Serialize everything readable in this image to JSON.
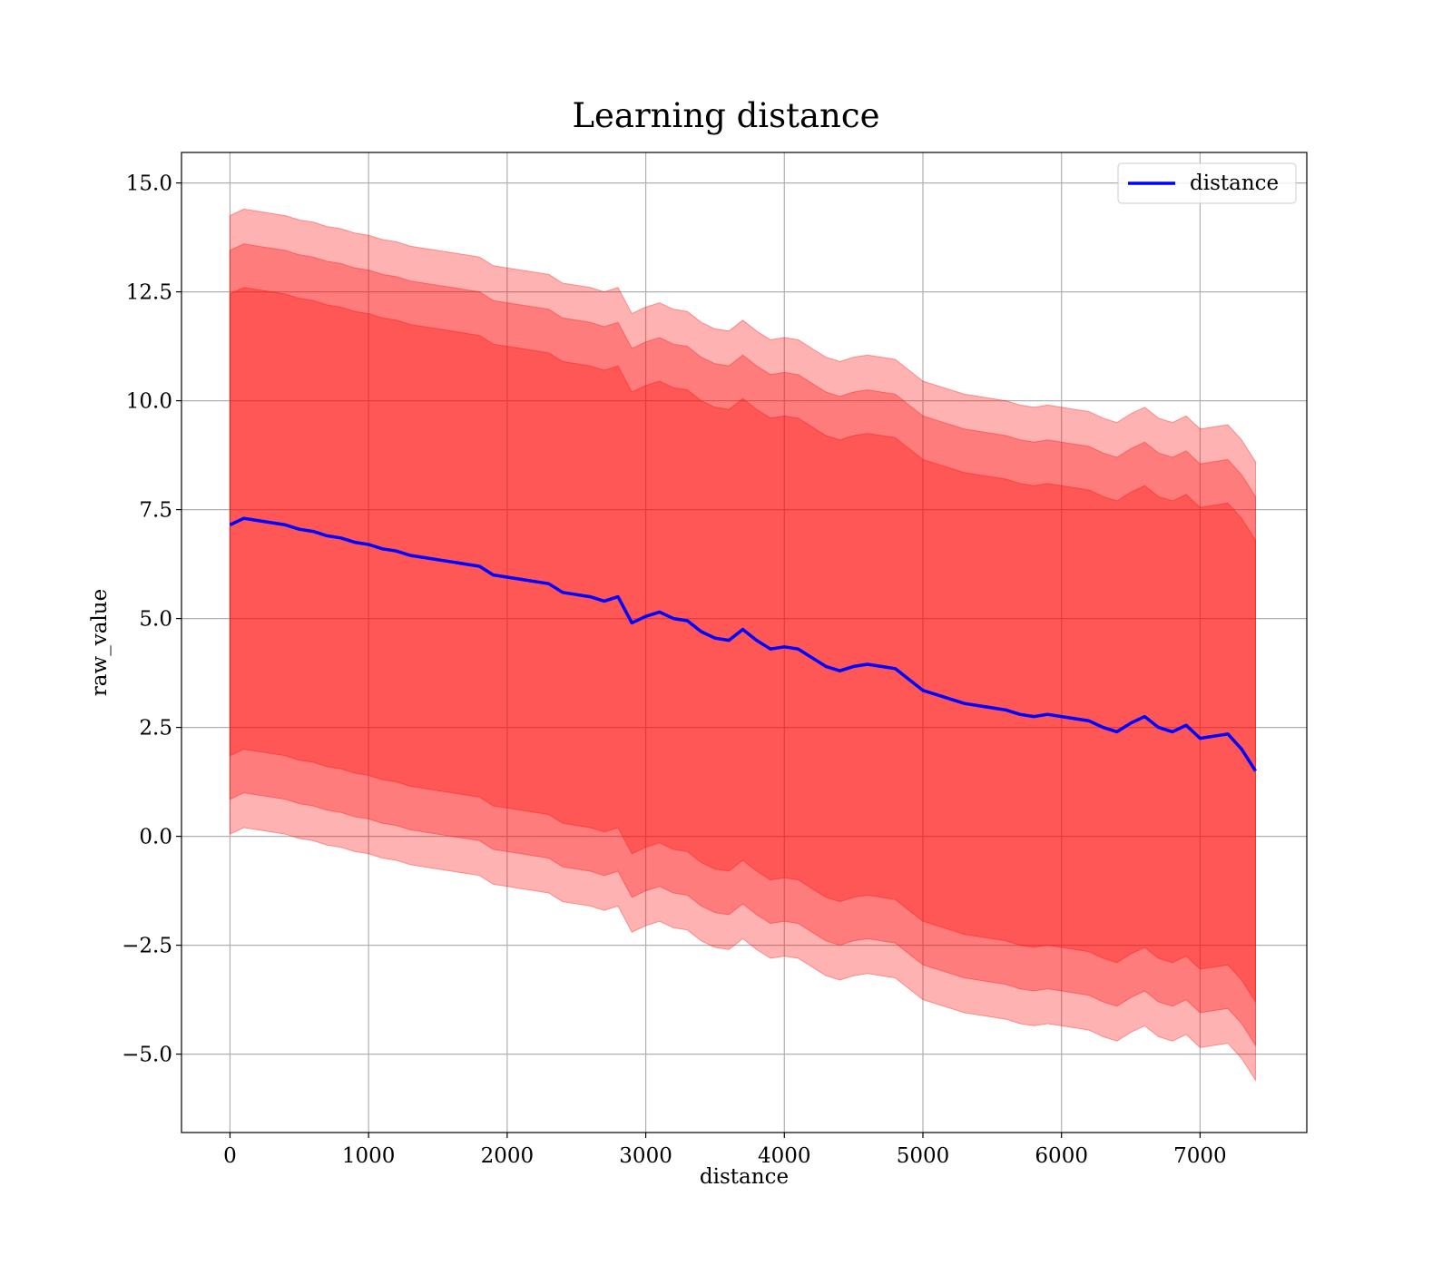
{
  "chart_data": {
    "type": "area",
    "title": "Learning distance",
    "xlabel": "distance",
    "ylabel": "raw_value",
    "xlim": [
      -350,
      7770
    ],
    "ylim": [
      -6.8,
      15.7
    ],
    "xticks": [
      0,
      1000,
      2000,
      3000,
      4000,
      5000,
      6000,
      7000
    ],
    "xtick_labels": [
      "0",
      "1000",
      "2000",
      "3000",
      "4000",
      "5000",
      "6000",
      "7000"
    ],
    "yticks": [
      -5.0,
      -2.5,
      0.0,
      2.5,
      5.0,
      7.5,
      10.0,
      12.5,
      15.0
    ],
    "ytick_labels": [
      "−5.0",
      "−2.5",
      "0.0",
      "2.5",
      "5.0",
      "7.5",
      "10.0",
      "12.5",
      "15.0"
    ],
    "grid": true,
    "legend": {
      "position": "top-right",
      "entries": [
        "distance"
      ]
    },
    "colors": {
      "line": "#0000ff",
      "band": "#ff0000",
      "grid": "#b0b0b0"
    },
    "band_half_widths": [
      5.3,
      6.3,
      7.1
    ],
    "band_opacity": 0.3,
    "series": [
      {
        "name": "distance",
        "x": [
          0,
          100,
          200,
          300,
          400,
          500,
          600,
          700,
          800,
          900,
          1000,
          1100,
          1200,
          1300,
          1400,
          1500,
          1600,
          1700,
          1800,
          1900,
          2000,
          2100,
          2200,
          2300,
          2400,
          2500,
          2600,
          2700,
          2800,
          2900,
          3000,
          3100,
          3200,
          3300,
          3400,
          3500,
          3600,
          3700,
          3800,
          3900,
          4000,
          4100,
          4200,
          4300,
          4400,
          4500,
          4600,
          4700,
          4800,
          4900,
          5000,
          5100,
          5200,
          5300,
          5400,
          5500,
          5600,
          5700,
          5800,
          5900,
          6000,
          6100,
          6200,
          6300,
          6400,
          6500,
          6600,
          6700,
          6800,
          6900,
          7000,
          7100,
          7200,
          7300,
          7400
        ],
        "y": [
          7.15,
          7.3,
          7.25,
          7.2,
          7.15,
          7.05,
          7.0,
          6.9,
          6.85,
          6.75,
          6.7,
          6.6,
          6.55,
          6.45,
          6.4,
          6.35,
          6.3,
          6.25,
          6.2,
          6.0,
          5.95,
          5.9,
          5.85,
          5.8,
          5.6,
          5.55,
          5.5,
          5.4,
          5.5,
          4.9,
          5.05,
          5.15,
          5.0,
          4.95,
          4.7,
          4.55,
          4.5,
          4.75,
          4.5,
          4.3,
          4.35,
          4.3,
          4.1,
          3.9,
          3.8,
          3.9,
          3.95,
          3.9,
          3.85,
          3.6,
          3.35,
          3.25,
          3.15,
          3.05,
          3.0,
          2.95,
          2.9,
          2.8,
          2.75,
          2.8,
          2.75,
          2.7,
          2.65,
          2.5,
          2.4,
          2.6,
          2.75,
          2.5,
          2.4,
          2.55,
          2.25,
          2.3,
          2.35,
          2.0,
          1.5
        ]
      }
    ]
  }
}
